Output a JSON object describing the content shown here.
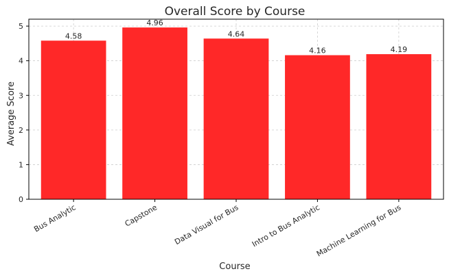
{
  "chart_data": {
    "type": "bar",
    "title": "Overall Score by Course",
    "xlabel": "Course",
    "ylabel": "Average Score",
    "categories": [
      "Bus Analytic",
      "Capstone",
      "Data Visual for Bus",
      "Intro to Bus Analytic",
      "Machine Learning for Bus"
    ],
    "values": [
      4.58,
      4.96,
      4.64,
      4.16,
      4.19
    ],
    "data_labels": [
      "4.58",
      "4.96",
      "4.64",
      "4.16",
      "4.19"
    ],
    "ylim": [
      0,
      5.2
    ],
    "yticks": [
      0,
      1,
      2,
      3,
      4,
      5
    ],
    "ytick_labels": [
      "0",
      "1",
      "2",
      "3",
      "4",
      "5"
    ],
    "grid": true,
    "bar_color": "#ff2828"
  }
}
